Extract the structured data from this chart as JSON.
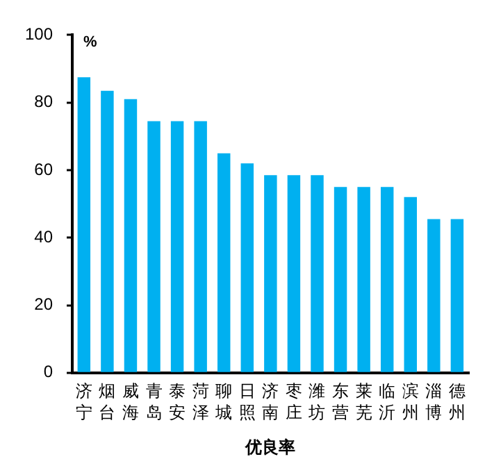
{
  "chart_data": {
    "type": "bar",
    "ylabel": "%",
    "xlabel": "优良率",
    "categories": [
      "济宁",
      "烟台",
      "威海",
      "青岛",
      "泰安",
      "菏泽",
      "聊城",
      "日照",
      "济南",
      "枣庄",
      "潍坊",
      "东营",
      "莱芜",
      "临沂",
      "滨州",
      "淄博",
      "德州"
    ],
    "values": [
      87.5,
      83.5,
      81,
      74.5,
      74.5,
      74.5,
      65,
      62,
      58.5,
      58.5,
      58.5,
      55,
      55,
      55,
      52,
      45.5,
      45.5
    ],
    "color": "#00b0f0",
    "ylim": [
      0,
      100
    ],
    "yticks": [
      0,
      20,
      40,
      60,
      80,
      100
    ],
    "grid": false,
    "legend": false
  }
}
